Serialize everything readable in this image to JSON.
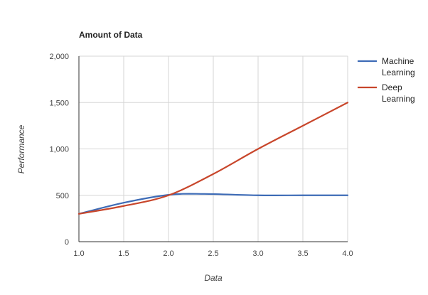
{
  "chart_data": {
    "type": "line",
    "title": "Amount of Data",
    "xlabel": "Data",
    "ylabel": "Performance",
    "xlim": [
      1.0,
      4.0
    ],
    "ylim": [
      0,
      2000
    ],
    "x_ticks": [
      1.0,
      1.5,
      2.0,
      2.5,
      3.0,
      3.5,
      4.0
    ],
    "x_tick_labels": [
      "1.0",
      "1.5",
      "2.0",
      "2.5",
      "3.0",
      "3.5",
      "4.0"
    ],
    "y_ticks": [
      0,
      500,
      1000,
      1500,
      2000
    ],
    "y_tick_labels": [
      "0",
      "500",
      "1,000",
      "1,500",
      "2,000"
    ],
    "grid": true,
    "legend_position": "right",
    "series": [
      {
        "name": "Machine Learning",
        "legend_lines": [
          "Machine",
          "Learning"
        ],
        "color": "#3d6bb6",
        "x": [
          1.0,
          1.5,
          2.0,
          2.4,
          3.0,
          3.5,
          4.0
        ],
        "y": [
          300,
          420,
          505,
          515,
          500,
          500,
          500
        ]
      },
      {
        "name": "Deep Learning",
        "legend_lines": [
          "Deep",
          "Learning"
        ],
        "color": "#c8462b",
        "x": [
          1.0,
          1.5,
          2.0,
          2.5,
          3.0,
          3.5,
          4.0
        ],
        "y": [
          300,
          385,
          500,
          730,
          1000,
          1250,
          1500
        ]
      }
    ]
  }
}
